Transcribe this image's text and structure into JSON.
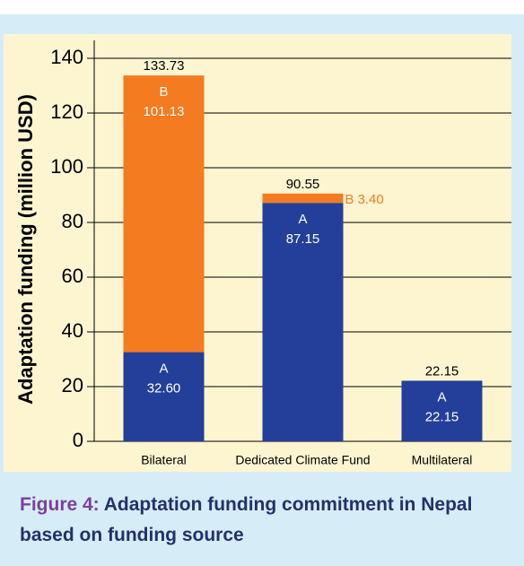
{
  "chart_data": {
    "type": "stacked_bar",
    "y_label": "Adaptation funding (million USD)",
    "caption_label": "Figure 4:",
    "title": "Adaptation funding commitment in Nepal based on funding source",
    "categories": [
      "Bilateral",
      "Dedicated Climate Fund",
      "Multilateral"
    ],
    "series": [
      {
        "name": "A",
        "color": "#233f99",
        "values": [
          32.6,
          87.15,
          22.15
        ],
        "value_labels": [
          "32.60",
          "87.15",
          "22.15"
        ]
      },
      {
        "name": "B",
        "color": "#f47b20",
        "values": [
          101.13,
          3.4,
          null
        ],
        "value_labels": [
          "101.13",
          "3.40",
          null
        ]
      }
    ],
    "totals": [
      133.73,
      90.55,
      22.15
    ],
    "ylim": [
      0,
      140
    ],
    "yticks": [
      0,
      20,
      40,
      60,
      80,
      100,
      120,
      140
    ],
    "grid": true
  }
}
